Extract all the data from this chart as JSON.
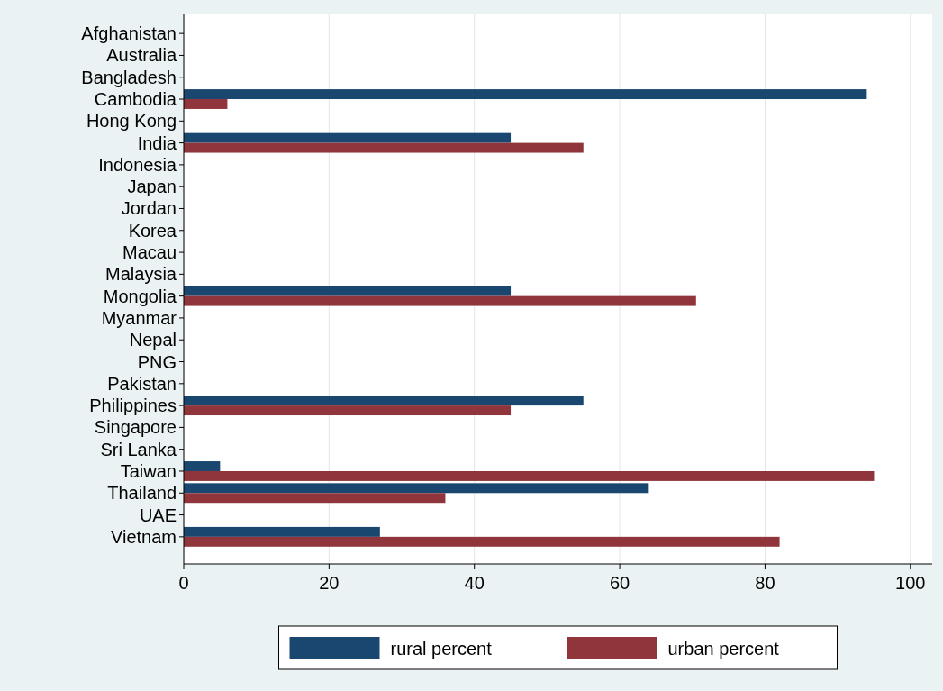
{
  "chart_data": {
    "type": "bar",
    "orientation": "horizontal",
    "categories": [
      "Afghanistan",
      "Australia",
      "Bangladesh",
      "Cambodia",
      "Hong Kong",
      "India",
      "Indonesia",
      "Japan",
      "Jordan",
      "Korea",
      "Macau",
      "Malaysia",
      "Mongolia",
      "Myanmar",
      "Nepal",
      "PNG",
      "Pakistan",
      "Philippines",
      "Singapore",
      "Sri Lanka",
      "Taiwan",
      "Thailand",
      "UAE",
      "Vietnam"
    ],
    "series": [
      {
        "name": "rural percent",
        "color": "#1a476f",
        "values": [
          null,
          null,
          null,
          94,
          null,
          45,
          null,
          null,
          null,
          null,
          null,
          null,
          45,
          null,
          null,
          null,
          null,
          55,
          null,
          null,
          5,
          64,
          null,
          27
        ]
      },
      {
        "name": "urban percent",
        "color": "#90353b",
        "values": [
          null,
          null,
          null,
          6,
          null,
          55,
          null,
          null,
          null,
          null,
          null,
          null,
          70.5,
          null,
          null,
          null,
          null,
          45,
          null,
          null,
          95,
          36,
          null,
          82
        ]
      }
    ],
    "xlim": [
      0,
      103
    ],
    "xticks": [
      0,
      20,
      40,
      60,
      80,
      100
    ],
    "grid": "x",
    "legend": "bottom"
  }
}
